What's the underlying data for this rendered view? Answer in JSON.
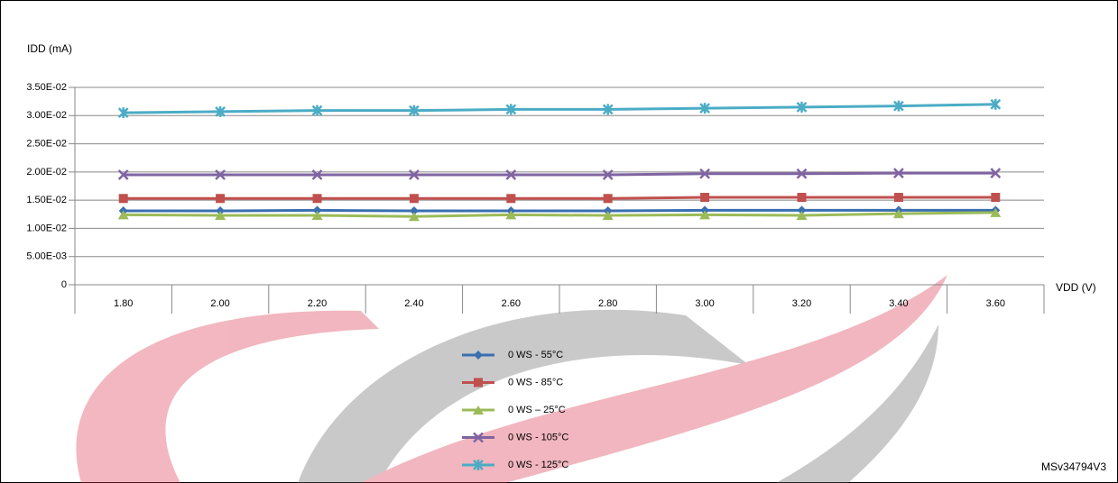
{
  "chart_data": {
    "type": "line",
    "y_label": "IDD (mA)",
    "x_label": "VDD (V)",
    "watermark": "MSv34794V3",
    "categories": [
      "1.80",
      "2.00",
      "2.20",
      "2.40",
      "2.60",
      "2.80",
      "3.00",
      "3.20",
      "3.40",
      "3.60"
    ],
    "ylim": [
      0,
      0.035
    ],
    "yticks": [
      0,
      {
        "value": 0.005,
        "label": "5.00E-03"
      },
      {
        "value": 0.01,
        "label": "1.00E-02"
      },
      {
        "value": 0.015,
        "label": "1.50E-02"
      },
      {
        "value": 0.02,
        "label": "2.00E-02"
      },
      {
        "value": 0.025,
        "label": "2.50E-02"
      },
      {
        "value": 0.03,
        "label": "3.00E-02"
      },
      {
        "value": 0.035,
        "label": "3.50E-02"
      }
    ],
    "grid": true,
    "series": [
      {
        "name": "0 WS - 55°C",
        "color": "#3a6fb0",
        "values": [
          0.0131,
          0.0131,
          0.0132,
          0.0131,
          0.0131,
          0.0131,
          0.0132,
          0.0132,
          0.0132,
          0.0132
        ]
      },
      {
        "name": "0 WS - 85°C",
        "color": "#c0504d",
        "values": [
          0.0153,
          0.0153,
          0.0153,
          0.0153,
          0.0153,
          0.0153,
          0.0155,
          0.0155,
          0.0155,
          0.0155
        ]
      },
      {
        "name": "0 WS – 25°C",
        "color": "#9bbb59",
        "values": [
          0.0124,
          0.0123,
          0.0123,
          0.0121,
          0.0124,
          0.0123,
          0.0124,
          0.0123,
          0.0126,
          0.0128
        ]
      },
      {
        "name": "0 WS - 105°C",
        "color": "#8064a2",
        "values": [
          0.0195,
          0.0195,
          0.0195,
          0.0195,
          0.0195,
          0.0195,
          0.0197,
          0.0197,
          0.0198,
          0.0198
        ]
      },
      {
        "name": "0 WS - 125°C",
        "color": "#4bacc6",
        "values": [
          0.0305,
          0.0307,
          0.0309,
          0.0309,
          0.0311,
          0.0311,
          0.0313,
          0.0315,
          0.0317,
          0.032
        ]
      }
    ]
  }
}
